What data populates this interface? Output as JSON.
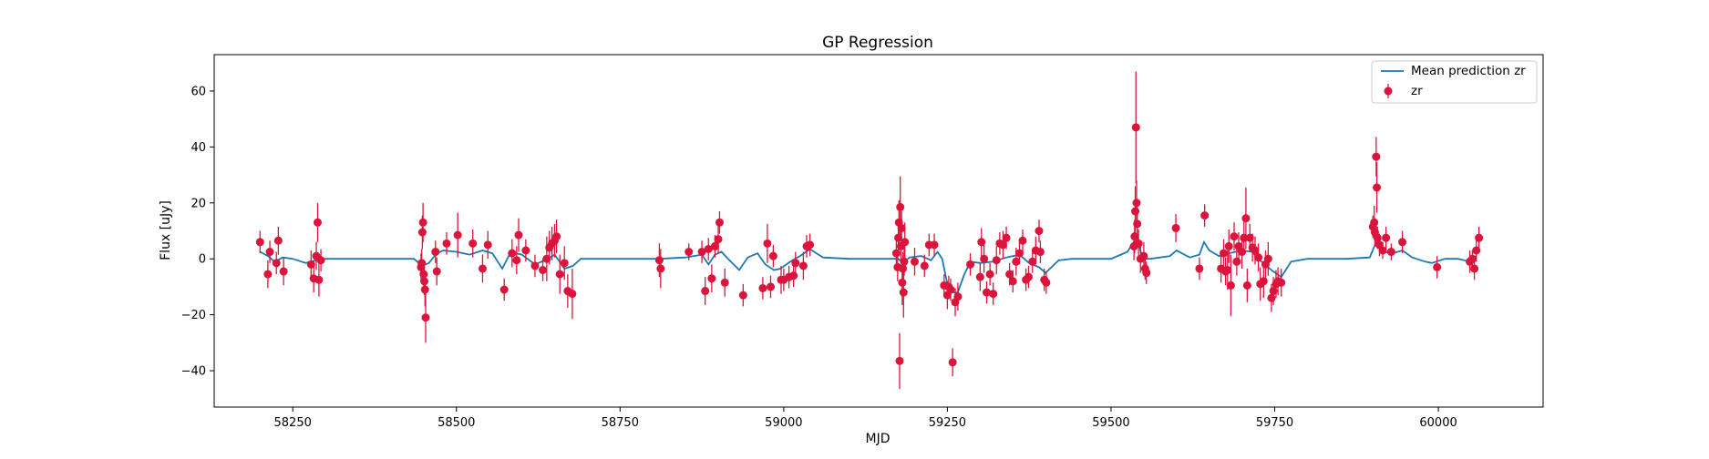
{
  "chart_data": {
    "type": "scatter",
    "title": "GP Regression",
    "xlabel": "MJD",
    "ylabel": "Flux [uJy]",
    "xlim": [
      58130,
      60160
    ],
    "ylim": [
      -53,
      73
    ],
    "xticks": [
      58250,
      58500,
      58750,
      59000,
      59250,
      59500,
      59750,
      60000
    ],
    "yticks": [
      -40,
      -20,
      0,
      20,
      40,
      60
    ],
    "grid": false,
    "legend": {
      "placement": "top-right"
    },
    "series": [
      {
        "name": "Mean prediction zr",
        "kind": "line",
        "color": "#1f77b4",
        "points": [
          [
            58200,
            2.5
          ],
          [
            58212,
            1.0
          ],
          [
            58222,
            -1.0
          ],
          [
            58235,
            0.5
          ],
          [
            58250,
            0.0
          ],
          [
            58270,
            -1.5
          ],
          [
            58285,
            -0.5
          ],
          [
            58300,
            0.0
          ],
          [
            58340,
            0.0
          ],
          [
            58400,
            0.0
          ],
          [
            58435,
            0.0
          ],
          [
            58448,
            -2.5
          ],
          [
            58458,
            -1.5
          ],
          [
            58470,
            2.0
          ],
          [
            58480,
            3.0
          ],
          [
            58500,
            2.5
          ],
          [
            58520,
            1.5
          ],
          [
            58540,
            3.0
          ],
          [
            58555,
            2.0
          ],
          [
            58570,
            -3.5
          ],
          [
            58580,
            1.0
          ],
          [
            58590,
            2.0
          ],
          [
            58600,
            1.5
          ],
          [
            58620,
            -2.0
          ],
          [
            58640,
            0.0
          ],
          [
            58650,
            1.5
          ],
          [
            58665,
            -3.5
          ],
          [
            58678,
            -2.5
          ],
          [
            58690,
            0.0
          ],
          [
            58750,
            0.0
          ],
          [
            58810,
            0.0
          ],
          [
            58850,
            0.5
          ],
          [
            58875,
            1.5
          ],
          [
            58885,
            -2.0
          ],
          [
            58895,
            1.5
          ],
          [
            58905,
            2.5
          ],
          [
            58915,
            0.0
          ],
          [
            58932,
            -4.0
          ],
          [
            58945,
            0.5
          ],
          [
            58960,
            2.0
          ],
          [
            58972,
            -2.0
          ],
          [
            58985,
            -4.0
          ],
          [
            58995,
            -3.5
          ],
          [
            59010,
            -1.0
          ],
          [
            59025,
            1.0
          ],
          [
            59040,
            3.5
          ],
          [
            59060,
            0.5
          ],
          [
            59100,
            0.0
          ],
          [
            59150,
            0.0
          ],
          [
            59175,
            0.0
          ],
          [
            59182,
            -1.5
          ],
          [
            59192,
            0.5
          ],
          [
            59210,
            1.0
          ],
          [
            59225,
            -0.5
          ],
          [
            59235,
            2.5
          ],
          [
            59242,
            0.0
          ],
          [
            59250,
            -9.0
          ],
          [
            59258,
            -12.0
          ],
          [
            59266,
            -12.0
          ],
          [
            59275,
            -6.0
          ],
          [
            59285,
            -1.0
          ],
          [
            59300,
            -1.5
          ],
          [
            59320,
            -1.0
          ],
          [
            59340,
            0.5
          ],
          [
            59360,
            1.5
          ],
          [
            59375,
            -1.5
          ],
          [
            59390,
            -3.0
          ],
          [
            59400,
            -5.0
          ],
          [
            59420,
            -0.5
          ],
          [
            59440,
            0.0
          ],
          [
            59500,
            0.0
          ],
          [
            59525,
            2.5
          ],
          [
            59540,
            8.0
          ],
          [
            59548,
            0.0
          ],
          [
            59560,
            0.0
          ],
          [
            59590,
            1.0
          ],
          [
            59600,
            3.0
          ],
          [
            59620,
            0.5
          ],
          [
            59635,
            1.5
          ],
          [
            59642,
            6.0
          ],
          [
            59650,
            3.0
          ],
          [
            59665,
            1.0
          ],
          [
            59680,
            2.0
          ],
          [
            59700,
            3.0
          ],
          [
            59715,
            2.5
          ],
          [
            59730,
            -1.0
          ],
          [
            59745,
            -4.0
          ],
          [
            59760,
            -6.5
          ],
          [
            59775,
            -1.0
          ],
          [
            59800,
            0.0
          ],
          [
            59860,
            0.0
          ],
          [
            59895,
            0.5
          ],
          [
            59905,
            6.0
          ],
          [
            59915,
            2.5
          ],
          [
            59930,
            2.0
          ],
          [
            59945,
            3.0
          ],
          [
            59960,
            0.5
          ],
          [
            59980,
            -1.0
          ],
          [
            59990,
            -1.5
          ],
          [
            60010,
            0.0
          ],
          [
            60030,
            0.0
          ],
          [
            60040,
            -0.5
          ],
          [
            60050,
            -1.5
          ],
          [
            60058,
            1.0
          ]
        ]
      },
      {
        "name": "zr",
        "kind": "errorbar",
        "color": "#dc143c",
        "points": [
          [
            58200,
            6,
            4
          ],
          [
            58212,
            -5.5,
            5
          ],
          [
            58215,
            2.5,
            4
          ],
          [
            58225,
            -1.5,
            4
          ],
          [
            58228,
            6.5,
            5
          ],
          [
            58236,
            -4.5,
            5
          ],
          [
            58278,
            -2,
            5
          ],
          [
            58282,
            -7,
            5
          ],
          [
            58286,
            1,
            5
          ],
          [
            58288,
            13,
            7
          ],
          [
            58290,
            -7.5,
            6
          ],
          [
            58293,
            -0.5,
            4
          ],
          [
            58446,
            -3,
            5
          ],
          [
            58447,
            -1.5,
            5
          ],
          [
            58448,
            9.5,
            6
          ],
          [
            58449,
            13,
            7
          ],
          [
            58450,
            -5.5,
            5
          ],
          [
            58451,
            -8,
            5
          ],
          [
            58452,
            -11,
            6
          ],
          [
            58453,
            -21,
            9
          ],
          [
            58468,
            2.5,
            4
          ],
          [
            58470,
            -4.5,
            5
          ],
          [
            58485,
            5.5,
            4
          ],
          [
            58502,
            8.5,
            8
          ],
          [
            58525,
            5.5,
            5
          ],
          [
            58540,
            -3.5,
            5
          ],
          [
            58548,
            5,
            5
          ],
          [
            58573,
            -11,
            4
          ],
          [
            58585,
            2,
            5
          ],
          [
            58592,
            -0.5,
            5
          ],
          [
            58595,
            8.5,
            6
          ],
          [
            58606,
            3,
            4
          ],
          [
            58620,
            -2.5,
            4
          ],
          [
            58632,
            -4,
            4
          ],
          [
            58638,
            0,
            8
          ],
          [
            58642,
            4,
            6
          ],
          [
            58646,
            5.5,
            6
          ],
          [
            58650,
            6.5,
            6
          ],
          [
            58653,
            8,
            6
          ],
          [
            58658,
            -5.5,
            7
          ],
          [
            58665,
            -1.5,
            6
          ],
          [
            58670,
            -11.5,
            6
          ],
          [
            58677,
            -12.5,
            9
          ],
          [
            58810,
            -0.5,
            6
          ],
          [
            58812,
            -3.5,
            7
          ],
          [
            58855,
            2.5,
            3
          ],
          [
            58875,
            2.5,
            4
          ],
          [
            58880,
            -11.5,
            5
          ],
          [
            58885,
            3.5,
            4
          ],
          [
            58890,
            -7,
            5
          ],
          [
            58895,
            4.5,
            4
          ],
          [
            58900,
            7,
            5
          ],
          [
            58902,
            13,
            4
          ],
          [
            58910,
            -8.5,
            5
          ],
          [
            58938,
            -13,
            4
          ],
          [
            58968,
            -10.5,
            4
          ],
          [
            58975,
            5.5,
            7
          ],
          [
            58980,
            -10,
            4
          ],
          [
            58984,
            1,
            4
          ],
          [
            58996,
            -7.5,
            5
          ],
          [
            59000,
            -7.5,
            4
          ],
          [
            59008,
            -6.5,
            4
          ],
          [
            59015,
            -6,
            4
          ],
          [
            59018,
            -1.5,
            4
          ],
          [
            59030,
            -2.5,
            5
          ],
          [
            59035,
            4.5,
            4
          ],
          [
            59040,
            5,
            4
          ],
          [
            59172,
            2,
            6
          ],
          [
            59174,
            -3,
            5
          ],
          [
            59175,
            7.5,
            6
          ],
          [
            59176,
            13,
            8
          ],
          [
            59177,
            -36.5,
            10
          ],
          [
            59178,
            18.5,
            11
          ],
          [
            59179,
            4.5,
            6
          ],
          [
            59180,
            11,
            6
          ],
          [
            59181,
            -8.5,
            8
          ],
          [
            59182,
            -3.5,
            6
          ],
          [
            59183,
            -12,
            9
          ],
          [
            59184,
            -1,
            5
          ],
          [
            59185,
            6,
            7
          ],
          [
            59200,
            -1,
            5
          ],
          [
            59215,
            -2.5,
            4
          ],
          [
            59222,
            5,
            4
          ],
          [
            59230,
            5,
            4
          ],
          [
            59245,
            -9.5,
            4
          ],
          [
            59250,
            -13,
            5
          ],
          [
            59252,
            -10,
            4
          ],
          [
            59255,
            -11,
            4
          ],
          [
            59258,
            -37,
            5
          ],
          [
            59262,
            -15.5,
            5
          ],
          [
            59266,
            -13.5,
            5
          ],
          [
            59285,
            -2,
            4
          ],
          [
            59300,
            -6.5,
            5
          ],
          [
            59302,
            6,
            5
          ],
          [
            59306,
            0,
            5
          ],
          [
            59310,
            -12,
            4
          ],
          [
            59315,
            -5.5,
            4
          ],
          [
            59320,
            -12.5,
            4
          ],
          [
            59325,
            -0.5,
            5
          ],
          [
            59330,
            5.5,
            4
          ],
          [
            59335,
            5,
            5
          ],
          [
            59340,
            7.5,
            4
          ],
          [
            59345,
            -5.5,
            4
          ],
          [
            59350,
            -8,
            4
          ],
          [
            59355,
            -1,
            5
          ],
          [
            59360,
            2,
            4
          ],
          [
            59365,
            6.5,
            4
          ],
          [
            59370,
            -7.5,
            4
          ],
          [
            59374,
            -6.5,
            4
          ],
          [
            59380,
            -1,
            4
          ],
          [
            59385,
            3,
            5
          ],
          [
            59390,
            10,
            4
          ],
          [
            59392,
            2.5,
            4
          ],
          [
            59398,
            -7.5,
            4
          ],
          [
            59401,
            -8.5,
            4
          ],
          [
            59535,
            4.5,
            5
          ],
          [
            59536,
            8,
            6
          ],
          [
            59537,
            17,
            9
          ],
          [
            59538,
            47,
            20
          ],
          [
            59539,
            20,
            8
          ],
          [
            59540,
            12.5,
            6
          ],
          [
            59542,
            5.5,
            5
          ],
          [
            59545,
            0,
            5
          ],
          [
            59550,
            1,
            5
          ],
          [
            59552,
            -3.5,
            4
          ],
          [
            59554,
            -5,
            4
          ],
          [
            59599,
            11,
            5
          ],
          [
            59635,
            -3.5,
            4
          ],
          [
            59643,
            15.5,
            4
          ],
          [
            59668,
            -3.5,
            5
          ],
          [
            59672,
            2,
            5
          ],
          [
            59675,
            -4.5,
            5
          ],
          [
            59678,
            -4,
            7
          ],
          [
            59680,
            4.5,
            6
          ],
          [
            59683,
            -9.5,
            11
          ],
          [
            59688,
            8,
            5
          ],
          [
            59692,
            -1,
            5
          ],
          [
            59695,
            4.5,
            5
          ],
          [
            59700,
            2.5,
            6
          ],
          [
            59703,
            7.5,
            6
          ],
          [
            59706,
            14.5,
            11
          ],
          [
            59708,
            -9.5,
            6
          ],
          [
            59712,
            7.5,
            5
          ],
          [
            59716,
            4,
            5
          ],
          [
            59720,
            3,
            5
          ],
          [
            59725,
            0.5,
            5
          ],
          [
            59728,
            -9,
            6
          ],
          [
            59733,
            -8,
            6
          ],
          [
            59736,
            -2,
            5
          ],
          [
            59740,
            0,
            6
          ],
          [
            59745,
            -14,
            5
          ],
          [
            59748,
            -11.5,
            5
          ],
          [
            59752,
            -9,
            5
          ],
          [
            59755,
            -8,
            5
          ],
          [
            59760,
            -8.5,
            5
          ],
          [
            59900,
            11.5,
            4
          ],
          [
            59902,
            13,
            6
          ],
          [
            59903,
            9.5,
            5
          ],
          [
            59905,
            36.5,
            7
          ],
          [
            59906,
            25.5,
            9
          ],
          [
            59907,
            7.5,
            4
          ],
          [
            59910,
            5,
            4
          ],
          [
            59915,
            3,
            3
          ],
          [
            59920,
            7.5,
            4
          ],
          [
            59928,
            2.5,
            3
          ],
          [
            59945,
            6,
            4
          ],
          [
            59998,
            -3,
            4
          ],
          [
            60048,
            -1,
            4
          ],
          [
            60052,
            0,
            3
          ],
          [
            60055,
            -3.5,
            4
          ],
          [
            60058,
            3,
            4
          ],
          [
            60062,
            7.5,
            4
          ]
        ]
      }
    ]
  }
}
